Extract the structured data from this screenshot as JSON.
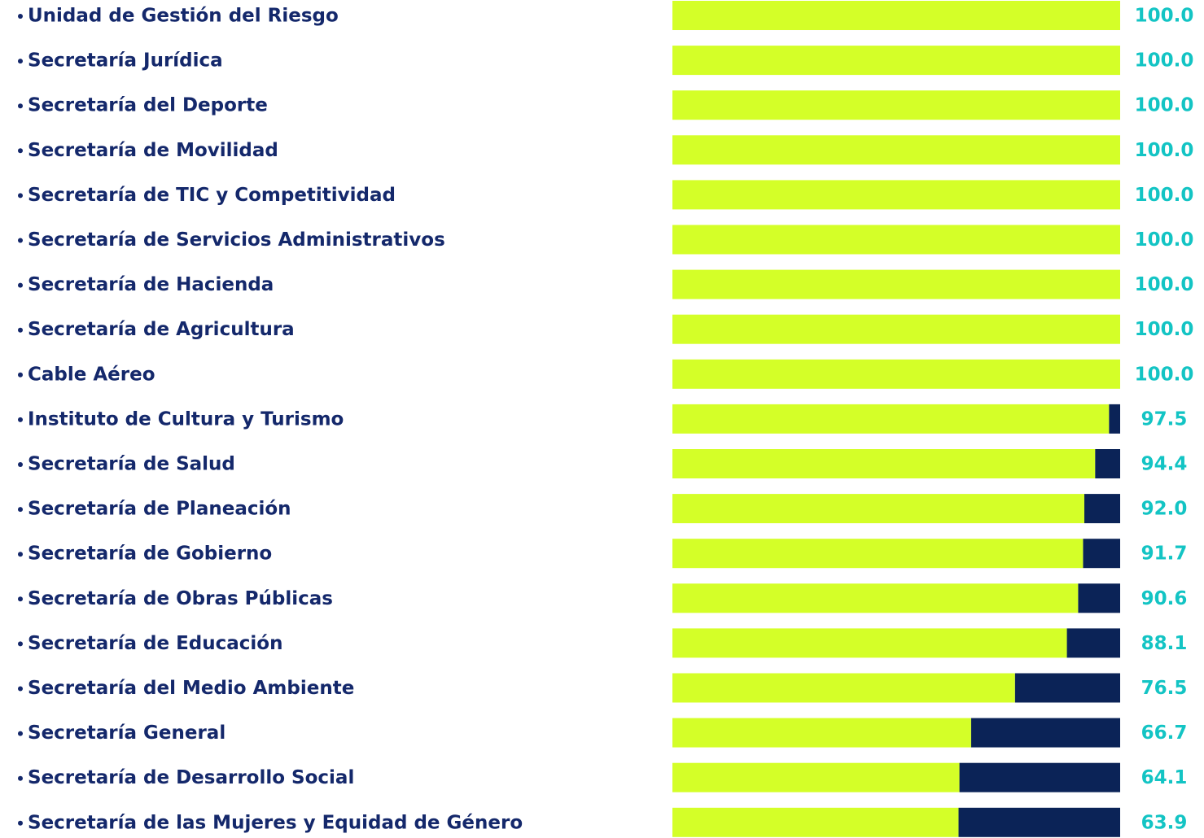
{
  "chart_data": {
    "type": "bar",
    "categories": [
      "Unidad de Gestión del Riesgo",
      "Secretaría Jurídica",
      "Secretaría del Deporte",
      "Secretaría de Movilidad",
      "Secretaría de TIC y Competitividad",
      "Secretaría de Servicios Administrativos",
      "Secretaría de Hacienda",
      "Secretaría de Agricultura",
      "Cable Aéreo",
      "Instituto de Cultura y Turismo",
      "Secretaría de Salud",
      "Secretaría de Planeación",
      "Secretaría de Gobierno",
      "Secretaría de Obras Públicas",
      "Secretaría de Educación",
      "Secretaría del Medio Ambiente",
      "Secretaría General",
      "Secretaría de Desarrollo Social",
      "Secretaría de las Mujeres y Equidad de Género"
    ],
    "values": [
      100,
      100,
      100,
      100,
      100,
      100,
      100,
      100,
      100,
      97.5,
      94.4,
      92,
      91.7,
      90.6,
      88.1,
      76.5,
      66.7,
      64.1,
      63.9
    ],
    "value_labels": [
      "100.0",
      "100.0",
      "100.0",
      "100.0",
      "100.0",
      "100.0",
      "100.0",
      "100.0",
      "100.0",
      "97.5",
      "94.4",
      "92.0",
      "91.7",
      "90.6",
      "88.1",
      "76.5",
      "66.7",
      "64.1",
      "63.9"
    ],
    "color": "#d4ff28",
    "remainder_color": "#0b2357",
    "label_color": "#13c4c4",
    "category_color": "#14286b",
    "xlim": [
      0,
      100
    ]
  }
}
